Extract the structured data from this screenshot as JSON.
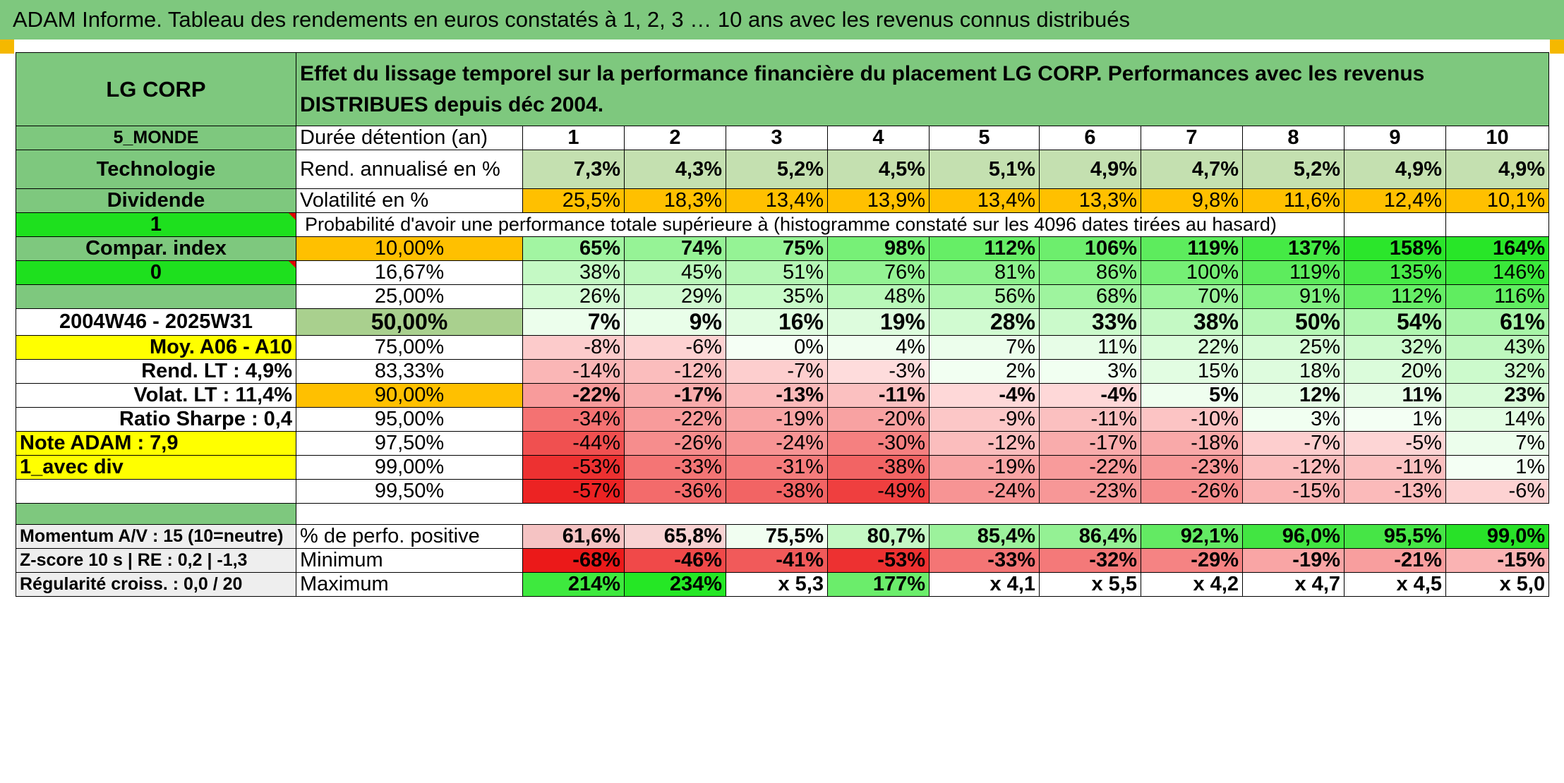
{
  "title": "ADAM Informe. Tableau des rendements en euros constatés à 1, 2, 3 … 10 ans avec les revenus connus distribués",
  "colors": {
    "header_green": "#7ec87e",
    "bright_green": "#1ee01e",
    "yellow": "#ffff00",
    "orange": "#ffc000",
    "pale_green": "#c4e0b0",
    "sage": "#a9d08e",
    "red_text": "#d01010"
  },
  "header": {
    "name": "LG CORP",
    "description": "Effet du lissage temporel sur la performance financière du placement LG CORP. Performances avec les revenus DISTRIBUES depuis déc 2004."
  },
  "side": {
    "category": "5_MONDE",
    "sector": "Technologie",
    "income": "Dividende",
    "flag1": "1",
    "compar_label": "Compar. index",
    "flag0": "0",
    "period": "2004W46 - 2025W31",
    "moy": "Moy. A06 - A10",
    "rend_lt": "Rend. LT :   4,9%",
    "volat_lt": "Volat. LT :   11,4%",
    "sharpe": "Ratio Sharpe :   0,4",
    "note": "Note ADAM : 7,9",
    "mode": "1_avec div",
    "momentum": "Momentum A/V : 15 (10=neutre)",
    "zscore": "Z-score 10 s | RE : 0,2 | -1,3",
    "regularite": "Régularité croiss. : 0,0 / 20"
  },
  "labels": {
    "duration": "Durée détention (an)",
    "rend": "Rend. annualisé en %",
    "volat": "Volatilité en %",
    "proba": "Probabilité d'avoir une performance totale supérieure à (histogramme constaté sur les 4096 dates tirées au hasard)",
    "positive": "% de perfo. positive",
    "minimum": "Minimum",
    "maximum": "Maximum"
  },
  "years": [
    "1",
    "2",
    "3",
    "4",
    "5",
    "6",
    "7",
    "8",
    "9",
    "10"
  ],
  "rend": [
    "7,3%",
    "4,3%",
    "5,2%",
    "4,5%",
    "5,1%",
    "4,9%",
    "4,7%",
    "5,2%",
    "4,9%",
    "4,9%"
  ],
  "volat": [
    "25,5%",
    "18,3%",
    "13,4%",
    "13,9%",
    "13,4%",
    "13,3%",
    "9,8%",
    "11,6%",
    "12,4%",
    "10,1%"
  ],
  "prob_rows": [
    {
      "p": "10,00%",
      "v": [
        "65%",
        "74%",
        "75%",
        "98%",
        "112%",
        "106%",
        "119%",
        "137%",
        "158%",
        "164%"
      ]
    },
    {
      "p": "16,67%",
      "v": [
        "38%",
        "45%",
        "51%",
        "76%",
        "81%",
        "86%",
        "100%",
        "119%",
        "135%",
        "146%"
      ]
    },
    {
      "p": "25,00%",
      "v": [
        "26%",
        "29%",
        "35%",
        "48%",
        "56%",
        "68%",
        "70%",
        "91%",
        "112%",
        "116%"
      ]
    },
    {
      "p": "50,00%",
      "v": [
        "7%",
        "9%",
        "16%",
        "19%",
        "28%",
        "33%",
        "38%",
        "50%",
        "54%",
        "61%"
      ]
    },
    {
      "p": "75,00%",
      "v": [
        "-8%",
        "-6%",
        "0%",
        "4%",
        "7%",
        "11%",
        "22%",
        "25%",
        "32%",
        "43%"
      ]
    },
    {
      "p": "83,33%",
      "v": [
        "-14%",
        "-12%",
        "-7%",
        "-3%",
        "2%",
        "3%",
        "15%",
        "18%",
        "20%",
        "32%"
      ]
    },
    {
      "p": "90,00%",
      "v": [
        "-22%",
        "-17%",
        "-13%",
        "-11%",
        "-4%",
        "-4%",
        "5%",
        "12%",
        "11%",
        "23%"
      ]
    },
    {
      "p": "95,00%",
      "v": [
        "-34%",
        "-22%",
        "-19%",
        "-20%",
        "-9%",
        "-11%",
        "-10%",
        "3%",
        "1%",
        "14%"
      ]
    },
    {
      "p": "97,50%",
      "v": [
        "-44%",
        "-26%",
        "-24%",
        "-30%",
        "-12%",
        "-17%",
        "-18%",
        "-7%",
        "-5%",
        "7%"
      ]
    },
    {
      "p": "99,00%",
      "v": [
        "-53%",
        "-33%",
        "-31%",
        "-38%",
        "-19%",
        "-22%",
        "-23%",
        "-12%",
        "-11%",
        "1%"
      ]
    },
    {
      "p": "99,50%",
      "v": [
        "-57%",
        "-36%",
        "-38%",
        "-49%",
        "-24%",
        "-23%",
        "-26%",
        "-15%",
        "-13%",
        "-6%"
      ]
    }
  ],
  "positive": [
    "61,6%",
    "65,8%",
    "75,5%",
    "80,7%",
    "85,4%",
    "86,4%",
    "92,1%",
    "96,0%",
    "95,5%",
    "99,0%"
  ],
  "minimum": [
    "-68%",
    "-46%",
    "-41%",
    "-53%",
    "-33%",
    "-32%",
    "-29%",
    "-19%",
    "-21%",
    "-15%"
  ],
  "maximum": [
    "214%",
    "234%",
    "x 5,3",
    "177%",
    "x 4,1",
    "x 5,5",
    "x 4,2",
    "x 4,7",
    "x 4,5",
    "x 5,0"
  ]
}
